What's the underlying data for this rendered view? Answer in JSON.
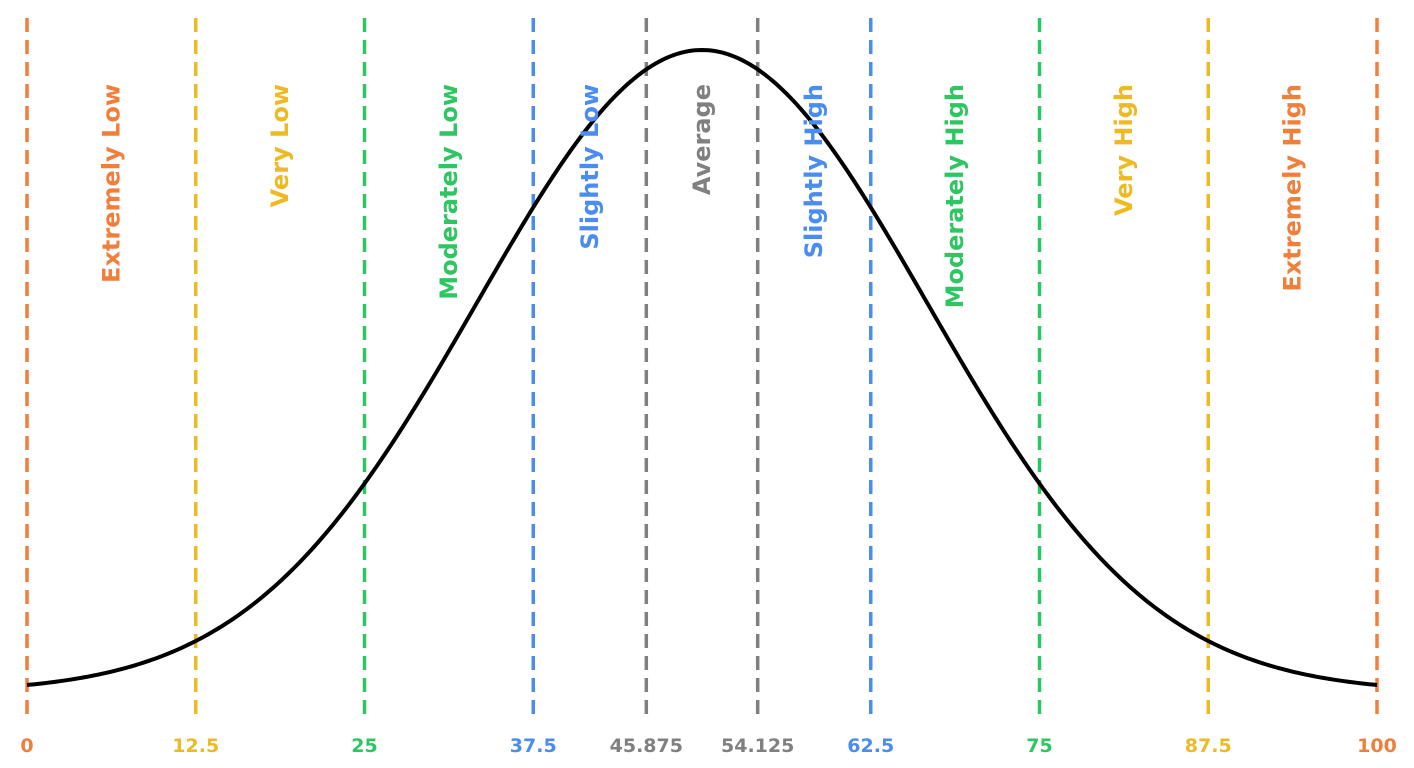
{
  "chart_data": {
    "type": "line",
    "xlim": [
      0,
      100
    ],
    "grid": false,
    "curve": {
      "distribution": "normal",
      "mean": 50,
      "sd": 16.67
    },
    "boundaries": [
      {
        "value": 0,
        "label": "0",
        "color": "#F07F3C"
      },
      {
        "value": 12.5,
        "label": "12.5",
        "color": "#EEBA24"
      },
      {
        "value": 25,
        "label": "25",
        "color": "#2DC662"
      },
      {
        "value": 37.5,
        "label": "37.5",
        "color": "#4A8CF0"
      },
      {
        "value": 45.875,
        "label": "45.875",
        "color": "#808080"
      },
      {
        "value": 54.125,
        "label": "54.125",
        "color": "#808080"
      },
      {
        "value": 62.5,
        "label": "62.5",
        "color": "#4A8CF0"
      },
      {
        "value": 75,
        "label": "75",
        "color": "#2DC662"
      },
      {
        "value": 87.5,
        "label": "87.5",
        "color": "#EEBA24"
      },
      {
        "value": 100,
        "label": "100",
        "color": "#F07F3C"
      }
    ],
    "bands": [
      {
        "label": "Extremely Low",
        "x": 6.25,
        "color": "#F07F3C"
      },
      {
        "label": "Very Low",
        "x": 18.75,
        "color": "#EEBA24"
      },
      {
        "label": "Moderately Low",
        "x": 31.25,
        "color": "#2DC662"
      },
      {
        "label": "Slightly Low",
        "x": 41.6875,
        "color": "#4A8CF0"
      },
      {
        "label": "Average",
        "x": 50,
        "color": "#808080"
      },
      {
        "label": "Slightly High",
        "x": 58.3125,
        "color": "#4A8CF0"
      },
      {
        "label": "Moderately High",
        "x": 68.75,
        "color": "#2DC662"
      },
      {
        "label": "Very High",
        "x": 81.25,
        "color": "#EEBA24"
      },
      {
        "label": "Extremely High",
        "x": 93.75,
        "color": "#F07F3C"
      }
    ]
  }
}
